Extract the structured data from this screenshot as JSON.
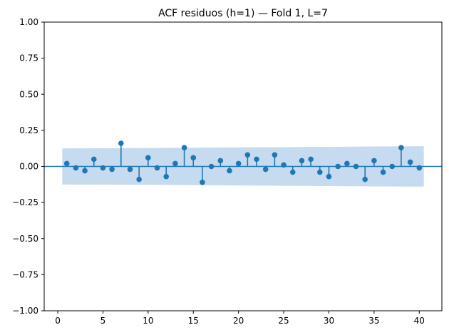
{
  "chart_data": {
    "type": "stem",
    "title": "ACF residuos (h=1) — Fold 1, L=7",
    "xlabel": "",
    "ylabel": "",
    "xlim": [
      -1.5,
      42.5
    ],
    "ylim": [
      -1.0,
      1.0
    ],
    "x_ticks": [
      0,
      5,
      10,
      15,
      20,
      25,
      30,
      35,
      40
    ],
    "x_tick_labels": [
      "0",
      "5",
      "10",
      "15",
      "20",
      "25",
      "30",
      "35",
      "40"
    ],
    "y_ticks": [
      -1.0,
      -0.75,
      -0.5,
      -0.25,
      0.0,
      0.25,
      0.5,
      0.75,
      1.0
    ],
    "y_tick_labels": [
      "−1.00",
      "−0.75",
      "−0.50",
      "−0.25",
      "0.00",
      "0.25",
      "0.50",
      "0.75",
      "1.00"
    ],
    "grid": false,
    "color": "#1f77b4",
    "band_color": "#c6dbef",
    "lags": [
      1,
      2,
      3,
      4,
      5,
      6,
      7,
      8,
      9,
      10,
      11,
      12,
      13,
      14,
      15,
      16,
      17,
      18,
      19,
      20,
      21,
      22,
      23,
      24,
      25,
      26,
      27,
      28,
      29,
      30,
      31,
      32,
      33,
      34,
      35,
      36,
      37,
      38,
      39,
      40
    ],
    "values": [
      0.02,
      -0.01,
      -0.03,
      0.05,
      -0.01,
      -0.02,
      0.16,
      -0.02,
      -0.09,
      0.06,
      -0.01,
      -0.07,
      0.02,
      0.13,
      0.06,
      -0.11,
      0.0,
      0.04,
      -0.03,
      0.02,
      0.08,
      0.05,
      -0.02,
      0.08,
      0.01,
      -0.04,
      0.04,
      0.05,
      -0.04,
      -0.07,
      0.0,
      0.02,
      0.0,
      -0.09,
      0.04,
      -0.04,
      0.0,
      0.13,
      0.03,
      -0.01
    ],
    "confidence_band": {
      "x": [
        0.5,
        10,
        20,
        30,
        40.5
      ],
      "upper": [
        0.125,
        0.127,
        0.132,
        0.136,
        0.14
      ],
      "lower": [
        -0.125,
        -0.127,
        -0.132,
        -0.136,
        -0.14
      ]
    }
  }
}
